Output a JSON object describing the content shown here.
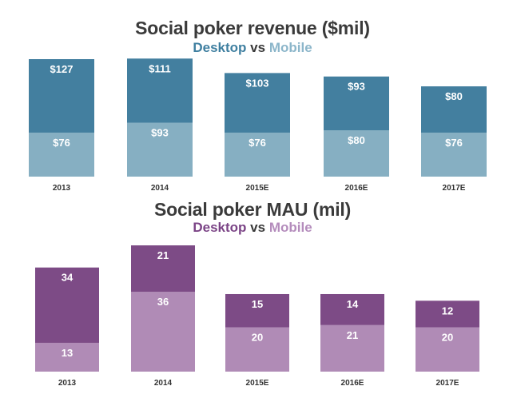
{
  "chart_data": [
    {
      "type": "bar",
      "stacked": true,
      "title": "Social poker revenue ($mil)",
      "subtitle": {
        "desktop": "Desktop",
        "vs": "vs",
        "mobile": "Mobile"
      },
      "categories": [
        "2013",
        "2014",
        "2015E",
        "2016E",
        "2017E"
      ],
      "series": [
        {
          "name": "Mobile",
          "values": [
            76,
            93,
            76,
            80,
            76
          ],
          "labels": [
            "$76",
            "$93",
            "$76",
            "$80",
            "$76"
          ],
          "color": "#86afc2"
        },
        {
          "name": "Desktop",
          "values": [
            127,
            111,
            103,
            93,
            80
          ],
          "labels": [
            "$127",
            "$111",
            "$103",
            "$93",
            "$80"
          ],
          "color": "#437f9f"
        }
      ],
      "title_colors": {
        "desktop": "#3f7fa0",
        "mobile": "#8cb6ca"
      },
      "grid": false,
      "y_axis_shown": false
    },
    {
      "type": "bar",
      "stacked": true,
      "title": "Social poker MAU (mil)",
      "subtitle": {
        "desktop": "Desktop",
        "vs": "vs",
        "mobile": "Mobile"
      },
      "categories": [
        "2013",
        "2014",
        "2015E",
        "2016E",
        "2017E"
      ],
      "series": [
        {
          "name": "Mobile",
          "values": [
            13,
            36,
            20,
            21,
            20
          ],
          "labels": [
            "13",
            "36",
            "20",
            "21",
            "20"
          ],
          "color": "#b08bb6"
        },
        {
          "name": "Desktop",
          "values": [
            34,
            21,
            15,
            14,
            12
          ],
          "labels": [
            "34",
            "21",
            "15",
            "14",
            "12"
          ],
          "color": "#7d4b86"
        }
      ],
      "title_colors": {
        "desktop": "#7b4486",
        "mobile": "#b48cbc"
      },
      "grid": false,
      "y_axis_shown": false
    }
  ]
}
